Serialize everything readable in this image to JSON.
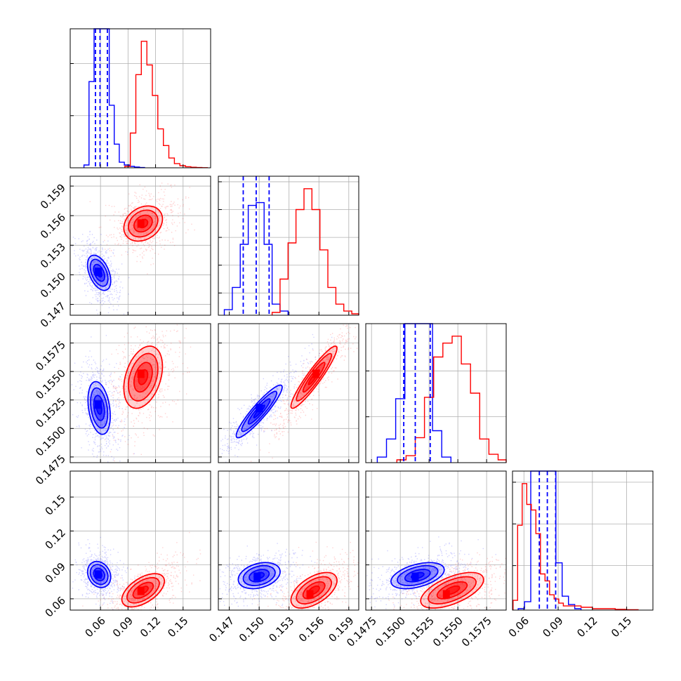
{
  "chart_data": {
    "type": "corner",
    "colors": {
      "blue": "#0000ff",
      "red": "#ff0000",
      "grid": "#b0b0b0",
      "axis": "#000000"
    },
    "series_colors": [
      "#0000ff",
      "#ff0000"
    ],
    "grid": true,
    "parameters": [
      {
        "xlim": [
          0.027,
          0.18
        ],
        "ticks": [
          0.06,
          0.09,
          0.12,
          0.15
        ],
        "tick_labels": [
          "0.06",
          "0.09",
          "0.12",
          "0.15"
        ]
      },
      {
        "xlim": [
          0.1459,
          0.16
        ],
        "ticks": [
          0.147,
          0.15,
          0.153,
          0.156,
          0.159
        ],
        "tick_labels": [
          "0.147",
          "0.150",
          "0.153",
          "0.156",
          "0.159"
        ]
      },
      {
        "xlim": [
          0.147,
          0.1592
        ],
        "ticks": [
          0.1475,
          0.15,
          0.1525,
          0.155,
          0.1575
        ],
        "tick_labels": [
          "0.1475",
          "0.1500",
          "0.1525",
          "0.1550",
          "0.1575"
        ]
      },
      {
        "xlim": [
          0.05,
          0.173
        ],
        "ticks": [
          0.06,
          0.09,
          0.12,
          0.15
        ],
        "tick_labels": [
          "0.06",
          "0.09",
          "0.12",
          "0.15"
        ]
      }
    ],
    "histograms": [
      {
        "param": 0,
        "ymax": 1.0,
        "yticks": [
          0.375,
          0.75
        ],
        "series": [
          {
            "color": "blue",
            "bins": [
              0.042,
              0.0475,
              0.053,
              0.0585,
              0.064,
              0.0695,
              0.075,
              0.0805,
              0.086,
              0.0915,
              0.097,
              0.1025,
              0.108
            ],
            "counts": [
              0.02,
              0.62,
              1.05,
              1.05,
              1.05,
              0.45,
              0.17,
              0.04,
              0.02,
              0.01,
              0.005,
              0.002
            ]
          },
          {
            "color": "red",
            "bins": [
              0.0865,
              0.0925,
              0.0985,
              0.1045,
              0.1105,
              0.1165,
              0.1225,
              0.1285,
              0.1345,
              0.1405,
              0.1465,
              0.1525,
              0.1585,
              0.1645,
              0.1705,
              0.1765
            ],
            "counts": [
              0.01,
              0.25,
              0.67,
              0.91,
              0.74,
              0.52,
              0.28,
              0.16,
              0.07,
              0.03,
              0.015,
              0.008,
              0.004,
              0.002,
              0.001
            ]
          }
        ],
        "quantiles": [
          0.0545,
          0.0595,
          0.0675
        ]
      },
      {
        "param": 1,
        "ymax": 1.0,
        "yticks": [
          0.16,
          0.36,
          0.56,
          0.76,
          0.96
        ],
        "series": [
          {
            "color": "blue",
            "bins": [
              0.1465,
              0.1473,
              0.1481,
              0.1489,
              0.1497,
              0.1505,
              0.1513,
              0.1521,
              0.1529
            ],
            "counts": [
              0.04,
              0.2,
              0.51,
              0.79,
              0.81,
              0.51,
              0.08,
              0.03
            ]
          },
          {
            "color": "red",
            "bins": [
              0.1513,
              0.1521,
              0.1529,
              0.1537,
              0.1545,
              0.1553,
              0.1561,
              0.1569,
              0.1577,
              0.1585,
              0.1593,
              0.16
            ],
            "counts": [
              0.02,
              0.26,
              0.52,
              0.76,
              0.91,
              0.76,
              0.47,
              0.2,
              0.08,
              0.03,
              0.01
            ]
          }
        ],
        "quantiles": [
          0.1484,
          0.1497,
          0.151
        ]
      },
      {
        "param": 2,
        "ymax": 1.0,
        "yticks": [
          0.33,
          0.66
        ],
        "series": [
          {
            "color": "blue",
            "bins": [
              0.148,
              0.1488,
              0.1496,
              0.1504,
              0.1512,
              0.152,
              0.1528,
              0.1536,
              0.1544
            ],
            "counts": [
              0.04,
              0.17,
              0.46,
              1.1,
              1.1,
              1.1,
              0.23,
              0.04
            ]
          },
          {
            "color": "red",
            "bins": [
              0.1497,
              0.1505,
              0.1513,
              0.1521,
              0.1529,
              0.1537,
              0.1545,
              0.1553,
              0.1561,
              0.1569,
              0.1577,
              0.1585,
              0.1592
            ],
            "counts": [
              0.02,
              0.05,
              0.18,
              0.47,
              0.76,
              0.86,
              0.91,
              0.71,
              0.5,
              0.17,
              0.06,
              0.02
            ]
          }
        ],
        "quantiles": [
          0.1503,
          0.1513,
          0.1526
        ]
      },
      {
        "param": 3,
        "ymax": 1.0,
        "yticks": [
          0.32,
          0.62,
          0.92
        ],
        "series": [
          {
            "color": "blue",
            "bins": [
              0.055,
              0.0605,
              0.066,
              0.0715,
              0.077,
              0.0825,
              0.088,
              0.0935,
              0.099,
              0.1045,
              0.11
            ],
            "counts": [
              0.01,
              0.06,
              1.05,
              1.05,
              1.05,
              1.05,
              0.34,
              0.1,
              0.04,
              0.01
            ]
          },
          {
            "color": "red",
            "bins": [
              0.0505,
              0.0545,
              0.0585,
              0.0625,
              0.0665,
              0.0705,
              0.0745,
              0.0785,
              0.0825,
              0.0865,
              0.0905,
              0.0945,
              0.1,
              0.11,
              0.12,
              0.13,
              0.14,
              0.15,
              0.16
            ],
            "counts": [
              0.07,
              0.61,
              0.91,
              0.76,
              0.72,
              0.55,
              0.26,
              0.21,
              0.11,
              0.08,
              0.05,
              0.03,
              0.03,
              0.02,
              0.01,
              0.01,
              0.005,
              0.003
            ]
          }
        ],
        "quantiles": [
          0.0735,
          0.0805,
          0.0878
        ]
      }
    ],
    "scatter": [
      {
        "row": 1,
        "col": 0,
        "series": [
          {
            "color": "blue",
            "mean": [
              0.0585,
              0.1502
            ],
            "sd": [
              0.006,
              0.00085
            ],
            "corr": -0.45,
            "peak": [
              0.0575,
              0.1503
            ]
          },
          {
            "color": "red",
            "mean": [
              0.1065,
              0.1552
            ],
            "sd": [
              0.01,
              0.00085
            ],
            "corr": 0.25,
            "peak": [
              0.104,
              0.1552
            ]
          }
        ]
      },
      {
        "row": 2,
        "col": 0,
        "series": [
          {
            "color": "blue",
            "mean": [
              0.0585,
              0.1518
            ],
            "sd": [
              0.0058,
              0.0011
            ],
            "corr": -0.3,
            "peak": [
              0.0575,
              0.1521
            ]
          },
          {
            "color": "red",
            "mean": [
              0.1065,
              0.1545
            ],
            "sd": [
              0.01,
              0.0013
            ],
            "corr": 0.35,
            "peak": [
              0.104,
              0.1548
            ]
          }
        ]
      },
      {
        "row": 2,
        "col": 1,
        "series": [
          {
            "color": "blue",
            "mean": [
              0.15,
              0.1515
            ],
            "sd": [
              0.0011,
              0.0011
            ],
            "corr": 0.92,
            "peak": [
              0.15,
              0.1518
            ]
          },
          {
            "color": "red",
            "mean": [
              0.1555,
              0.1545
            ],
            "sd": [
              0.0011,
              0.0013
            ],
            "corr": 0.93,
            "peak": [
              0.1557,
              0.1548
            ]
          }
        ]
      },
      {
        "row": 3,
        "col": 0,
        "series": [
          {
            "color": "blue",
            "mean": [
              0.0585,
              0.0815
            ],
            "sd": [
              0.006,
              0.0055
            ],
            "corr": -0.2,
            "peak": [
              0.0575,
              0.0815
            ]
          },
          {
            "color": "red",
            "mean": [
              0.1065,
              0.0675
            ],
            "sd": [
              0.011,
              0.007
            ],
            "corr": 0.55,
            "peak": [
              0.104,
              0.067
            ]
          }
        ]
      },
      {
        "row": 3,
        "col": 1,
        "series": [
          {
            "color": "blue",
            "mean": [
              0.15,
              0.0805
            ],
            "sd": [
              0.001,
              0.0055
            ],
            "corr": 0.3,
            "peak": [
              0.1498,
              0.0795
            ]
          },
          {
            "color": "red",
            "mean": [
              0.1555,
              0.0675
            ],
            "sd": [
              0.0011,
              0.0075
            ],
            "corr": 0.55,
            "peak": [
              0.1551,
              0.064
            ]
          }
        ]
      },
      {
        "row": 3,
        "col": 2,
        "series": [
          {
            "color": "blue",
            "mean": [
              0.1515,
              0.0805
            ],
            "sd": [
              0.0011,
              0.0055
            ],
            "corr": 0.45,
            "peak": [
              0.1513,
              0.0795
            ]
          },
          {
            "color": "red",
            "mean": [
              0.1545,
              0.0675
            ],
            "sd": [
              0.0013,
              0.0075
            ],
            "corr": 0.6,
            "peak": [
              0.154,
              0.064
            ]
          }
        ]
      }
    ],
    "contour_levels": [
      0.5,
      1.0,
      1.6,
      2.1
    ]
  }
}
